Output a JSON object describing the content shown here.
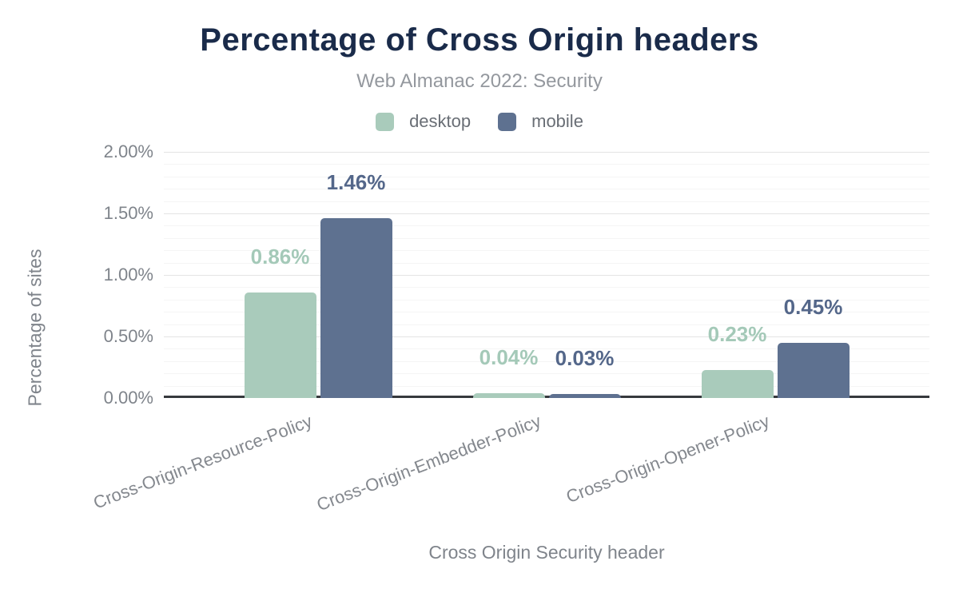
{
  "chart_data": {
    "type": "bar",
    "title": "Percentage of Cross Origin headers",
    "subtitle": "Web Almanac 2022: Security",
    "xlabel": "Cross Origin Security header",
    "ylabel": "Percentage of sites",
    "categories": [
      "Cross-Origin-Resource-Policy",
      "Cross-Origin-Embedder-Policy",
      "Cross-Origin-Opener-Policy"
    ],
    "series": [
      {
        "name": "desktop",
        "color": "#a9cbbb",
        "label_color": "#a4c9b8",
        "values": [
          0.86,
          0.04,
          0.23
        ],
        "data_labels": [
          "0.86%",
          "0.04%",
          "0.23%"
        ]
      },
      {
        "name": "mobile",
        "color": "#5e7190",
        "label_color": "#54678a",
        "values": [
          1.46,
          0.03,
          0.45
        ],
        "data_labels": [
          "1.46%",
          "0.03%",
          "0.45%"
        ]
      }
    ],
    "ylim": [
      0,
      2.0
    ],
    "y_major_step": 0.5,
    "y_minor_step": 0.1,
    "y_tick_labels": [
      "0.00%",
      "0.50%",
      "1.00%",
      "1.50%",
      "2.00%"
    ],
    "grid": "horizontal",
    "legend_position": "top-center"
  }
}
